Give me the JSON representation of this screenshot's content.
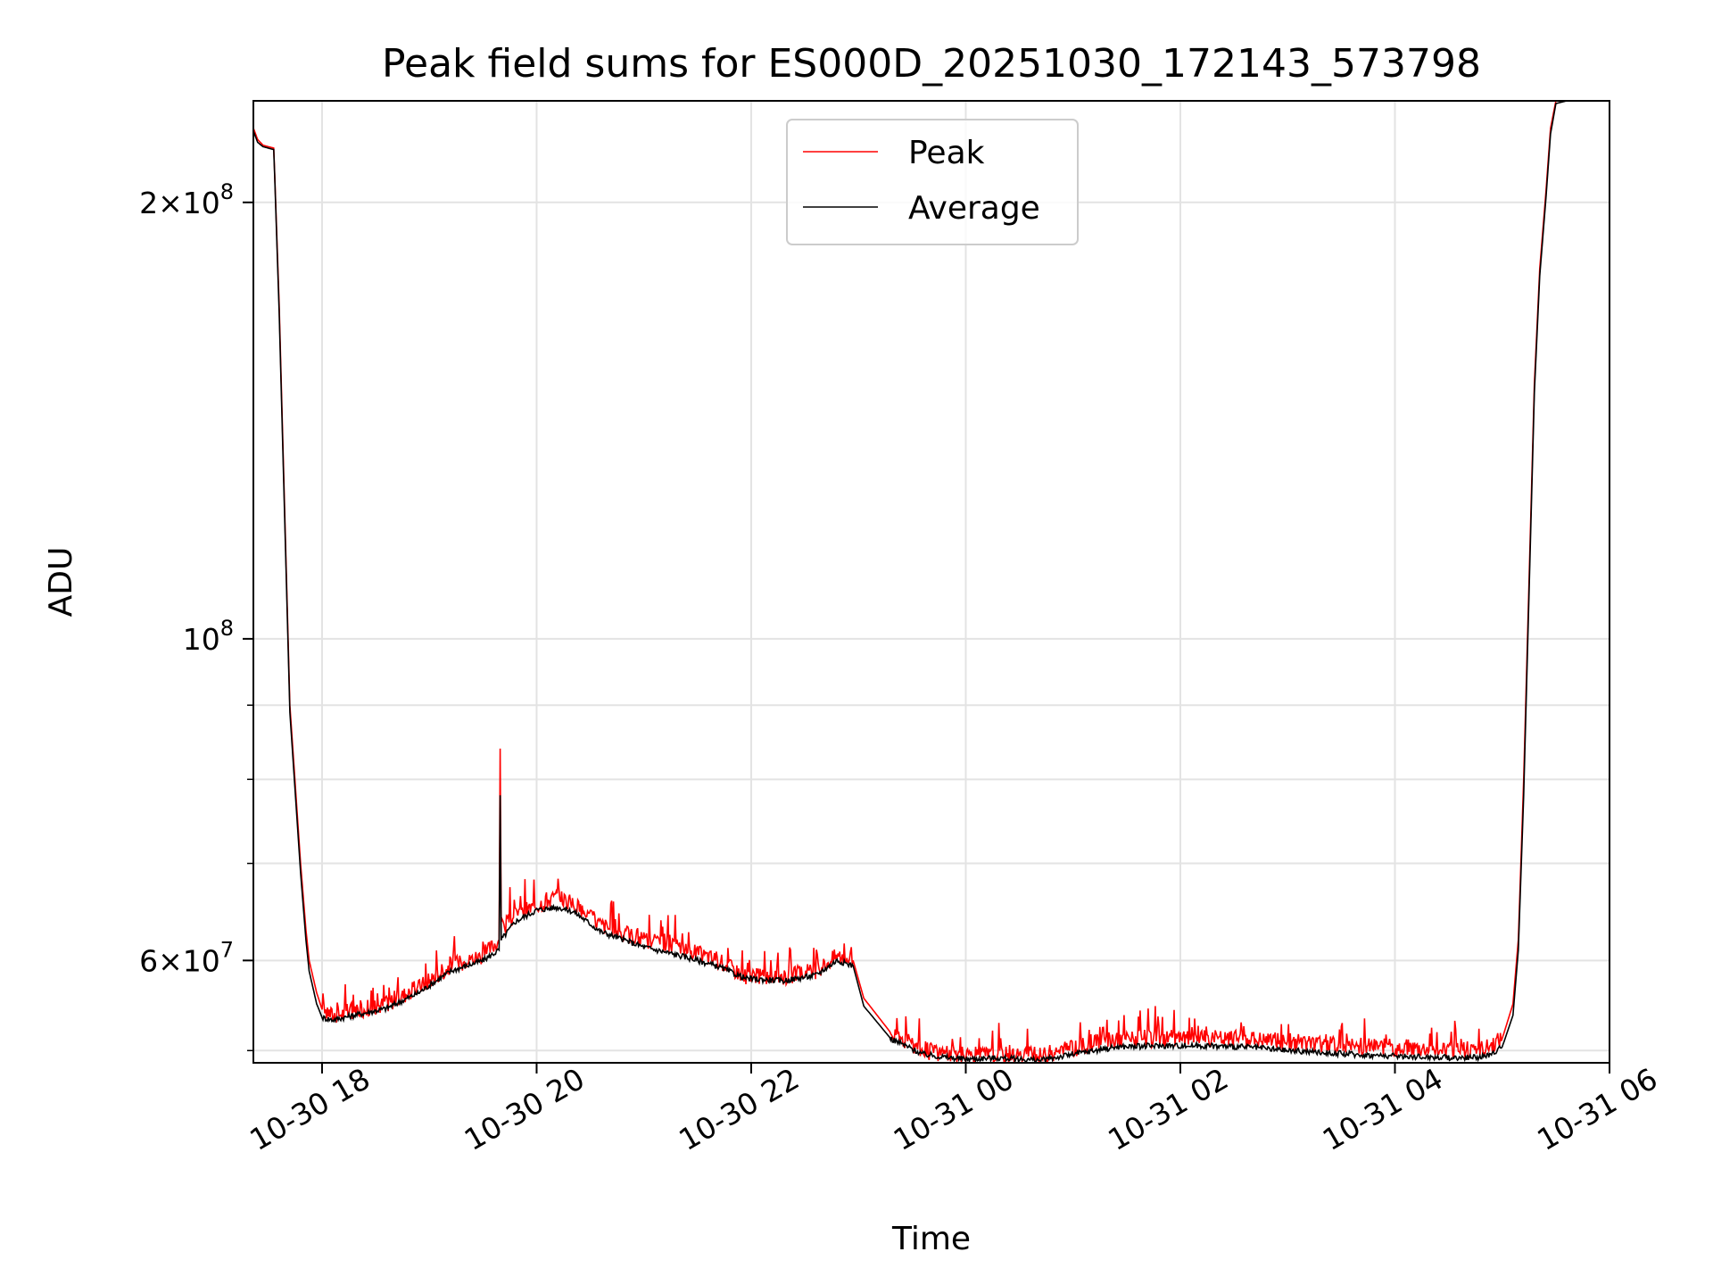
{
  "chart_data": {
    "type": "line",
    "title": "Peak field sums for ES000D_20251030_172143_573798",
    "xlabel": "Time",
    "ylabel": "ADU",
    "yscale": "log",
    "xlim_hours": [
      17.36,
      30.0
    ],
    "ylim": [
      51000000,
      235000000
    ],
    "grid": true,
    "legend_position": "upper center",
    "x_ticks": [
      {
        "hours": 18,
        "label": "10-30 18"
      },
      {
        "hours": 20,
        "label": "10-30 20"
      },
      {
        "hours": 22,
        "label": "10-30 22"
      },
      {
        "hours": 24,
        "label": "10-31 00"
      },
      {
        "hours": 26,
        "label": "10-31 02"
      },
      {
        "hours": 28,
        "label": "10-31 04"
      },
      {
        "hours": 30,
        "label": "10-31 06"
      }
    ],
    "y_major_ticks": [
      {
        "value": 200000000,
        "mantissa": "2",
        "exponent": "8"
      },
      {
        "value": 100000000,
        "mantissa": "",
        "exponent": "8"
      },
      {
        "value": 60000000,
        "mantissa": "6",
        "exponent": "7"
      }
    ],
    "y_minor_tick_values": [
      52000000,
      70000000,
      80000000,
      90000000
    ],
    "series": [
      {
        "name": "Peak",
        "color": "#ff0000",
        "x_hours": [
          17.36,
          17.4,
          17.45,
          17.55,
          17.6,
          17.7,
          17.8,
          17.85,
          17.88,
          17.95,
          18.0,
          18.1,
          18.3,
          18.6,
          18.9,
          19.2,
          19.5,
          19.65,
          19.66,
          19.67,
          19.8,
          20.0,
          20.2,
          20.35,
          20.6,
          21.0,
          21.4,
          21.7,
          21.95,
          22.3,
          22.6,
          22.8,
          22.95,
          23.05,
          23.3,
          23.6,
          23.85,
          24.0,
          24.3,
          24.7,
          25.0,
          25.4,
          25.8,
          26.2,
          26.6,
          27.0,
          27.4,
          27.8,
          28.2,
          28.6,
          28.85,
          29.0,
          29.1,
          29.15,
          29.2,
          29.3,
          29.35,
          29.4,
          29.45,
          29.5,
          29.6,
          29.7,
          29.8,
          30.0
        ],
        "values": [
          225000000,
          221000000,
          219000000,
          218000000,
          170000000,
          90000000,
          70000000,
          63000000,
          60000000,
          57000000,
          55500000,
          55000000,
          55400000,
          56000000,
          57500000,
          59500000,
          60500000,
          62000000,
          84000000,
          63000000,
          64500000,
          65500000,
          66500000,
          65500000,
          63500000,
          62000000,
          61000000,
          60000000,
          58500000,
          58500000,
          59000000,
          60500000,
          60000000,
          56500000,
          53500000,
          52000000,
          51700000,
          51600000,
          51700000,
          51600000,
          52200000,
          53000000,
          53000000,
          53000000,
          53000000,
          52700000,
          52500000,
          52300000,
          52200000,
          52000000,
          52200000,
          53000000,
          56000000,
          62000000,
          80000000,
          150000000,
          180000000,
          200000000,
          225000000,
          235000000,
          235000000,
          235000000,
          235000000,
          235000000
        ]
      },
      {
        "name": "Average",
        "color": "#000000",
        "x_hours": [
          17.36,
          17.4,
          17.45,
          17.55,
          17.6,
          17.7,
          17.8,
          17.85,
          17.88,
          17.95,
          18.0,
          18.1,
          18.3,
          18.6,
          18.9,
          19.2,
          19.5,
          19.65,
          19.66,
          19.67,
          19.8,
          20.0,
          20.2,
          20.35,
          20.6,
          21.0,
          21.4,
          21.7,
          21.95,
          22.3,
          22.6,
          22.8,
          22.95,
          23.05,
          23.3,
          23.6,
          23.85,
          24.0,
          24.3,
          24.7,
          25.0,
          25.4,
          25.8,
          26.2,
          26.6,
          27.0,
          27.4,
          27.8,
          28.2,
          28.6,
          28.85,
          29.0,
          29.1,
          29.15,
          29.2,
          29.3,
          29.35,
          29.4,
          29.45,
          29.5,
          29.6,
          29.7,
          29.8,
          30.0
        ],
        "values": [
          224000000,
          220000000,
          218500000,
          217500000,
          168000000,
          89000000,
          69000000,
          62000000,
          59000000,
          56000000,
          54800000,
          54600000,
          55000000,
          55600000,
          57000000,
          59000000,
          60000000,
          61000000,
          78000000,
          62000000,
          63800000,
          65000000,
          65300000,
          64800000,
          62800000,
          61300000,
          60300000,
          59400000,
          58300000,
          58100000,
          58600000,
          60000000,
          59500000,
          55800000,
          53000000,
          51700000,
          51400000,
          51300000,
          51400000,
          51200000,
          51700000,
          52300000,
          52400000,
          52400000,
          52300000,
          52000000,
          51800000,
          51600000,
          51500000,
          51400000,
          51500000,
          52300000,
          55000000,
          61000000,
          78000000,
          148000000,
          178000000,
          198000000,
          223000000,
          234000000,
          235000000,
          235000000,
          235000000,
          235000000
        ]
      }
    ]
  }
}
